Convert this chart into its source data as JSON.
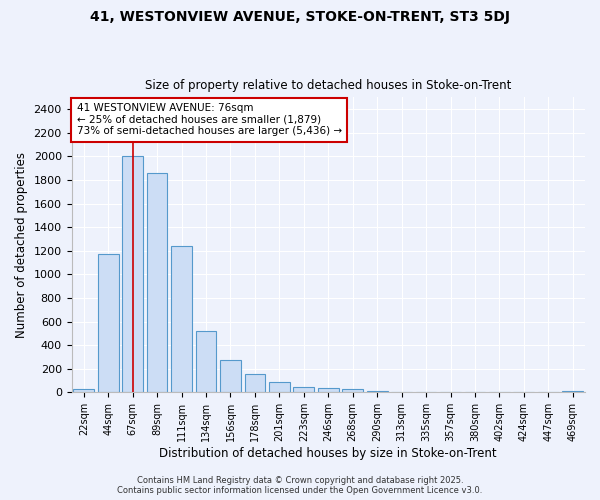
{
  "title1": "41, WESTONVIEW AVENUE, STOKE-ON-TRENT, ST3 5DJ",
  "title2": "Size of property relative to detached houses in Stoke-on-Trent",
  "xlabel": "Distribution of detached houses by size in Stoke-on-Trent",
  "ylabel": "Number of detached properties",
  "categories": [
    "22sqm",
    "44sqm",
    "67sqm",
    "89sqm",
    "111sqm",
    "134sqm",
    "156sqm",
    "178sqm",
    "201sqm",
    "223sqm",
    "246sqm",
    "268sqm",
    "290sqm",
    "313sqm",
    "335sqm",
    "357sqm",
    "380sqm",
    "402sqm",
    "424sqm",
    "447sqm",
    "469sqm"
  ],
  "values": [
    25,
    1175,
    2000,
    1860,
    1240,
    520,
    275,
    155,
    90,
    45,
    40,
    25,
    15,
    5,
    5,
    5,
    5,
    5,
    5,
    5,
    15
  ],
  "bar_color": "#ccddf5",
  "bar_edge_color": "#5599cc",
  "background_color": "#eef2fc",
  "grid_color": "#ffffff",
  "annotation_line1": "41 WESTONVIEW AVENUE: 76sqm",
  "annotation_line2": "← 25% of detached houses are smaller (1,879)",
  "annotation_line3": "73% of semi-detached houses are larger (5,436) →",
  "annotation_box_color": "#ffffff",
  "annotation_box_edge": "#cc0000",
  "ylim": [
    0,
    2500
  ],
  "yticks": [
    0,
    200,
    400,
    600,
    800,
    1000,
    1200,
    1400,
    1600,
    1800,
    2000,
    2200,
    2400
  ],
  "red_line_index": 2.0,
  "footnote": "Contains HM Land Registry data © Crown copyright and database right 2025.\nContains public sector information licensed under the Open Government Licence v3.0."
}
